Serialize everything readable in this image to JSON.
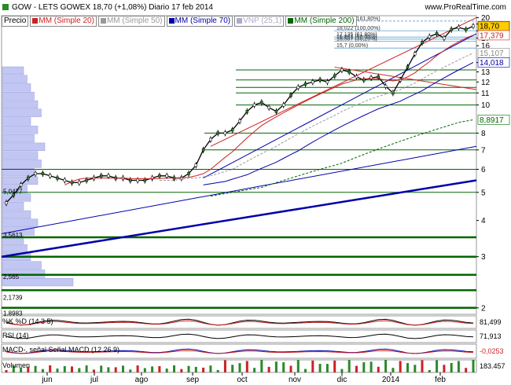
{
  "header": {
    "title": "GOW - LETS GOWEX   18,70 (+1,08%)   Diario  17 feb 2014",
    "site": "www.ProRealTime.com",
    "legend": [
      {
        "label": "Precio",
        "color": "#000000"
      },
      {
        "label": "MM (Simple 20)",
        "color": "#cc2222"
      },
      {
        "label": "MM (Simple 50)",
        "color": "#999999"
      },
      {
        "label": "MM (Simple 70)",
        "color": "#0000aa"
      },
      {
        "label": "VNP (25,1)",
        "color": "#aaaacc"
      },
      {
        "label": "MM (Simple 200)",
        "color": "#006600"
      }
    ]
  },
  "chart_data": {
    "type": "line",
    "title": "GOW - LETS GOWEX",
    "x_labels": [
      "jun",
      "jul",
      "ago",
      "sep",
      "oct",
      "nov",
      "dic",
      "2014",
      "feb"
    ],
    "y_ticks": [
      2,
      3,
      4,
      5,
      6,
      7,
      8,
      10,
      11,
      12,
      13,
      14,
      16,
      17,
      18,
      19,
      20
    ],
    "ylim": [
      1.9,
      20.3
    ],
    "log_scale": true,
    "series": [
      {
        "name": "Precio",
        "color": "#000000",
        "values": [
          4.6,
          4.9,
          5.3,
          5.6,
          5.8,
          5.8,
          5.7,
          5.6,
          5.5,
          5.4,
          5.4,
          5.5,
          5.6,
          5.7,
          5.7,
          5.6,
          5.6,
          5.5,
          5.5,
          5.5,
          5.6,
          5.7,
          5.7,
          5.6,
          5.6,
          5.8,
          6.2,
          7.0,
          7.6,
          8.0,
          8.0,
          8.2,
          8.8,
          9.5,
          10.0,
          10.2,
          9.8,
          9.5,
          10.0,
          10.8,
          11.5,
          11.8,
          12.0,
          12.2,
          12.0,
          12.6,
          13.2,
          13.0,
          12.5,
          12.2,
          12.4,
          12.5,
          11.6,
          11.0,
          12.2,
          13.5,
          15.0,
          16.4,
          17.2,
          17.6,
          17.0,
          18.2,
          18.5,
          18.2,
          18.7
        ]
      },
      {
        "name": "MM (Simple 20)",
        "color": "#cc2222",
        "values": [
          null,
          null,
          null,
          null,
          null,
          null,
          null,
          null,
          5.3,
          5.45,
          5.55,
          5.6,
          5.6,
          5.6,
          5.6,
          5.6,
          5.6,
          5.58,
          5.57,
          5.57,
          5.57,
          5.58,
          5.6,
          5.6,
          5.62,
          5.63,
          5.7,
          5.8,
          6.0,
          6.3,
          6.6,
          6.9,
          7.3,
          7.7,
          8.1,
          8.5,
          8.8,
          9.1,
          9.4,
          9.7,
          10.0,
          10.3,
          10.6,
          10.9,
          11.2,
          11.5,
          11.8,
          12.0,
          12.2,
          12.3,
          12.3,
          12.3,
          12.2,
          12.1,
          12.2,
          12.5,
          12.9,
          13.5,
          14.1,
          14.8,
          15.4,
          16.0,
          16.5,
          17.0,
          17.4
        ]
      },
      {
        "name": "MM (Simple 50)",
        "color": "#999999",
        "values": [
          null,
          null,
          null,
          null,
          null,
          null,
          null,
          null,
          null,
          null,
          null,
          null,
          null,
          null,
          null,
          null,
          null,
          null,
          null,
          null,
          null,
          5.5,
          5.5,
          5.5,
          5.55,
          5.6,
          5.6,
          5.65,
          5.7,
          5.8,
          5.9,
          6.0,
          6.2,
          6.4,
          6.6,
          6.8,
          7.0,
          7.2,
          7.45,
          7.7,
          7.95,
          8.2,
          8.45,
          8.7,
          8.95,
          9.2,
          9.5,
          9.75,
          10.0,
          10.25,
          10.5,
          10.7,
          10.9,
          11.1,
          11.3,
          11.6,
          11.9,
          12.3,
          12.7,
          13.1,
          13.5,
          13.9,
          14.3,
          14.7,
          15.1
        ]
      },
      {
        "name": "MM (Simple 70)",
        "color": "#0000aa",
        "values": [
          null,
          null,
          null,
          null,
          null,
          null,
          null,
          null,
          null,
          null,
          null,
          null,
          null,
          null,
          null,
          null,
          null,
          null,
          null,
          null,
          null,
          null,
          null,
          null,
          null,
          null,
          null,
          5.3,
          5.35,
          5.4,
          5.45,
          5.55,
          5.65,
          5.75,
          5.9,
          6.05,
          6.2,
          6.35,
          6.55,
          6.75,
          6.95,
          7.2,
          7.45,
          7.7,
          7.95,
          8.2,
          8.45,
          8.7,
          8.95,
          9.2,
          9.45,
          9.7,
          9.9,
          10.1,
          10.3,
          10.6,
          10.9,
          11.2,
          11.6,
          12.0,
          12.4,
          12.8,
          13.2,
          13.6,
          14.02
        ]
      },
      {
        "name": "MM (Simple 200)",
        "color": "#006600",
        "values": [
          null,
          null,
          null,
          null,
          null,
          null,
          null,
          null,
          null,
          null,
          null,
          null,
          null,
          null,
          null,
          null,
          null,
          null,
          null,
          null,
          null,
          null,
          null,
          null,
          null,
          null,
          null,
          null,
          4.85,
          4.9,
          4.95,
          5.0,
          5.05,
          5.1,
          5.15,
          5.2,
          5.3,
          5.4,
          5.5,
          5.6,
          5.7,
          5.8,
          5.9,
          6.0,
          6.1,
          6.2,
          6.3,
          6.45,
          6.6,
          6.75,
          6.9,
          7.05,
          7.2,
          7.35,
          7.5,
          7.65,
          7.8,
          7.95,
          8.1,
          8.25,
          8.4,
          8.55,
          8.7,
          8.8,
          8.89
        ]
      }
    ],
    "fib_levels": [
      {
        "label": "19,456 (161,80%)",
        "value": 19.456
      },
      {
        "label": "18,022 (100,00%)",
        "value": 18.022
      },
      {
        "label": "17,135 (61,80%)",
        "value": 17.135
      },
      {
        "label": "16,861 (50,00%)",
        "value": 16.861
      },
      {
        "label": "16,587 (38,20%)",
        "value": 16.587
      },
      {
        "label": "15,7 (0,00%)",
        "value": 15.7
      }
    ],
    "horizontal_levels": [
      13.2,
      12.2,
      11.5,
      11.0,
      10.0,
      8.0,
      7.0,
      6.0,
      5.0,
      3.5,
      3.0,
      2.6,
      2.3,
      2.0
    ],
    "left_labels": [
      {
        "label": "5,0477",
        "value": 5.0477
      },
      {
        "label": "3,5613",
        "value": 3.5613
      },
      {
        "label": "2,565",
        "value": 2.565
      },
      {
        "label": "2,1739",
        "value": 2.1739
      },
      {
        "label": "1,8983",
        "value": 1.8983
      }
    ],
    "right_labels": [
      {
        "label": "18,70",
        "value": 18.7,
        "color": "#000000",
        "bg": "#ffcc00"
      },
      {
        "label": "17,379",
        "value": 17.379,
        "color": "#cc2222"
      },
      {
        "label": "15,107",
        "value": 15.107,
        "color": "#888888"
      },
      {
        "label": "14,018",
        "value": 14.018,
        "color": "#0000aa"
      },
      {
        "label": "8,8917",
        "value": 8.8917,
        "color": "#006600"
      }
    ],
    "volume_profile": [
      1.0,
      0.6,
      0.55,
      0.4,
      0.35,
      0.3,
      0.45,
      0.5,
      0.4,
      0.3,
      0.4,
      0.35,
      0.5,
      0.45,
      0.55,
      0.5,
      0.6,
      0.45,
      0.5,
      0.4,
      0.55,
      0.5,
      0.45,
      0.4,
      0.35,
      0.3
    ]
  },
  "indicators": {
    "rsi_label": "%K  %D (14 3 5)",
    "rsi_value": "81,499",
    "rsi_main_label": "RSI (14)",
    "rsi_main_value": "71,913",
    "macd_label": "MACD-, señal  Señal  MACD (12 26 9)",
    "macd_value": "-0,0253",
    "volume_label": "Volumen",
    "volume_value": "183.457"
  }
}
